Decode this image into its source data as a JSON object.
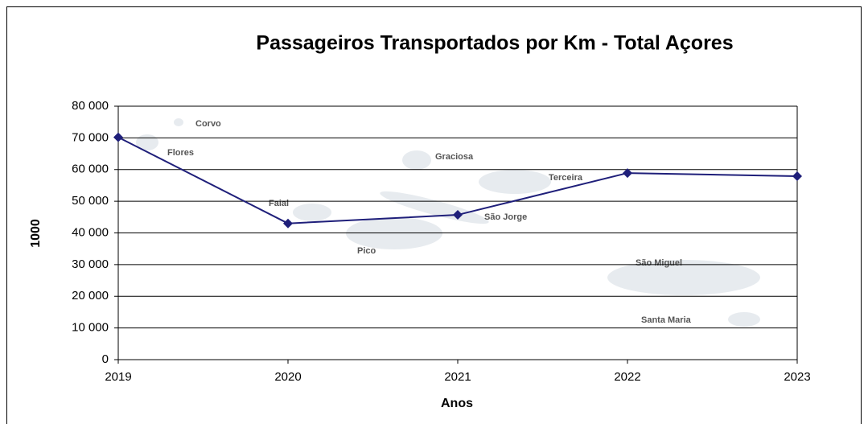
{
  "chart_data": {
    "type": "line",
    "title": "Passageiros Transportados por Km - Total Açores",
    "x_label": "Anos",
    "y_label": "1000",
    "x": [
      2019,
      2020,
      2021,
      2022,
      2023
    ],
    "series": [
      {
        "name": "Passageiros",
        "color": "#1f1f7a",
        "values": [
          70200,
          43000,
          45700,
          58900,
          57900
        ]
      }
    ],
    "xlim": [
      2019,
      2023
    ],
    "xticks": [
      2019,
      2020,
      2021,
      2022,
      2023
    ],
    "ylim": [
      0,
      80000
    ],
    "yticks": [
      0,
      {
        "value": 10000,
        "label": "10 000"
      },
      {
        "value": 20000,
        "label": "20 000"
      },
      {
        "value": 30000,
        "label": "30 000"
      },
      {
        "value": 40000,
        "label": "40 000"
      },
      {
        "value": 50000,
        "label": "50 000"
      },
      {
        "value": 60000,
        "label": "60 000"
      },
      {
        "value": 70000,
        "label": "70 000"
      },
      {
        "value": 80000,
        "label": "80 000"
      }
    ],
    "grid": true,
    "annotations": [
      "Corvo",
      "Flores",
      "Graciosa",
      "Terceira",
      "Faial",
      "São Jorge",
      "Pico",
      "São Miguel",
      "Santa Maria"
    ]
  }
}
